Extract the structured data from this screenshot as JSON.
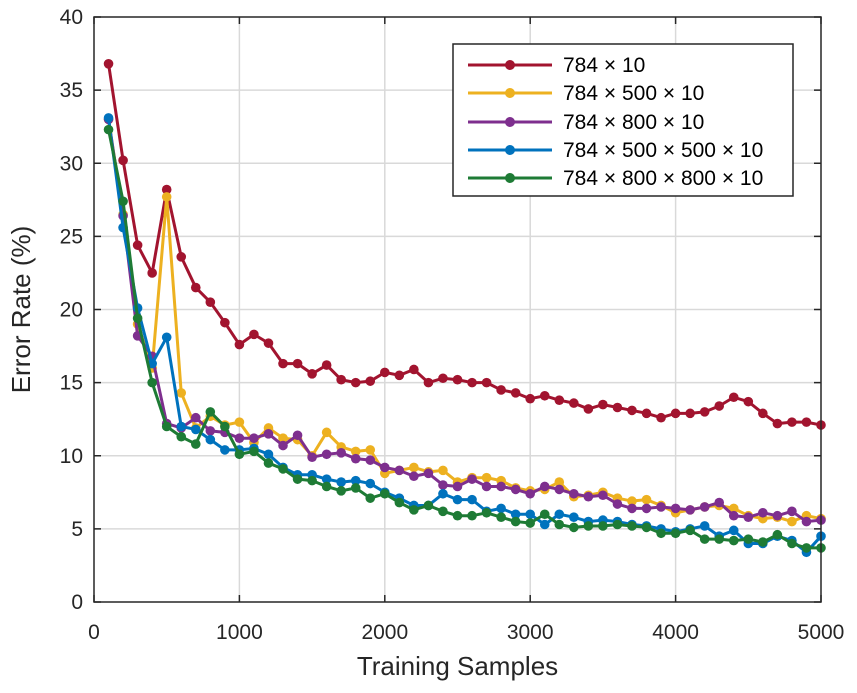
{
  "chart_data": {
    "type": "line",
    "title": "",
    "xlabel": "Training Samples",
    "ylabel": "Error Rate (%)",
    "xlim": [
      0,
      5000
    ],
    "ylim": [
      0,
      40
    ],
    "xticks": [
      0,
      1000,
      2000,
      3000,
      4000,
      5000
    ],
    "yticks": [
      0,
      5,
      10,
      15,
      20,
      25,
      30,
      35,
      40
    ],
    "grid": true,
    "legend_position": "top-right",
    "x": [
      100,
      200,
      300,
      400,
      500,
      600,
      700,
      800,
      900,
      1000,
      1100,
      1200,
      1300,
      1400,
      1500,
      1600,
      1700,
      1800,
      1900,
      2000,
      2100,
      2200,
      2300,
      2400,
      2500,
      2600,
      2700,
      2800,
      2900,
      3000,
      3100,
      3200,
      3300,
      3400,
      3500,
      3600,
      3700,
      3800,
      3900,
      4000,
      4100,
      4200,
      4300,
      4400,
      4500,
      4600,
      4700,
      4800,
      4900,
      5000
    ],
    "series": [
      {
        "name": "784 × 10",
        "color": "#a2142f",
        "values": [
          36.8,
          30.2,
          24.4,
          22.5,
          28.2,
          23.6,
          21.5,
          20.5,
          19.1,
          17.6,
          18.3,
          17.7,
          16.3,
          16.3,
          15.6,
          16.2,
          15.2,
          15.0,
          15.1,
          15.7,
          15.5,
          15.9,
          15.0,
          15.3,
          15.2,
          15.0,
          15.0,
          14.5,
          14.3,
          13.9,
          14.1,
          13.8,
          13.6,
          13.2,
          13.5,
          13.3,
          13.1,
          12.9,
          12.6,
          12.9,
          12.9,
          13.0,
          13.4,
          14.0,
          13.7,
          12.9,
          12.2,
          12.3,
          12.3,
          12.1
        ]
      },
      {
        "name": "784 × 500 × 10",
        "color": "#edb120",
        "values": [
          33.0,
          26.5,
          19.0,
          16.0,
          27.7,
          14.3,
          11.9,
          12.7,
          12.1,
          12.3,
          10.9,
          11.9,
          11.2,
          11.1,
          10.0,
          11.6,
          10.6,
          10.3,
          10.4,
          8.8,
          9.0,
          9.2,
          8.9,
          9.0,
          8.2,
          8.5,
          8.5,
          8.3,
          7.8,
          7.6,
          7.7,
          8.2,
          7.2,
          7.3,
          7.5,
          7.1,
          6.9,
          7.0,
          6.6,
          6.1,
          6.3,
          6.5,
          6.6,
          6.4,
          5.9,
          5.7,
          5.8,
          5.5,
          5.9,
          5.7
        ]
      },
      {
        "name": "784 × 800 × 10",
        "color": "#7e2f8e",
        "values": [
          33.0,
          26.4,
          18.2,
          16.8,
          12.2,
          11.9,
          12.6,
          11.7,
          11.6,
          11.2,
          11.2,
          11.5,
          10.7,
          11.4,
          9.9,
          10.1,
          10.2,
          9.8,
          9.7,
          9.2,
          9.0,
          8.6,
          8.8,
          8.0,
          7.9,
          8.4,
          7.9,
          7.9,
          7.7,
          7.4,
          7.9,
          7.7,
          7.4,
          7.2,
          7.3,
          6.7,
          6.4,
          6.4,
          6.5,
          6.4,
          6.3,
          6.5,
          6.8,
          5.9,
          5.8,
          6.1,
          5.9,
          6.2,
          5.5,
          5.6
        ]
      },
      {
        "name": "784 × 500 × 500 × 10",
        "color": "#0072bd",
        "values": [
          33.1,
          25.6,
          20.1,
          16.3,
          18.1,
          12.0,
          11.8,
          11.1,
          10.4,
          10.4,
          10.5,
          10.1,
          9.2,
          8.7,
          8.7,
          8.4,
          8.2,
          8.3,
          8.1,
          7.5,
          7.1,
          6.6,
          6.6,
          7.4,
          7.0,
          7.0,
          6.2,
          6.4,
          6.0,
          6.0,
          5.3,
          6.0,
          5.8,
          5.5,
          5.6,
          5.5,
          5.3,
          5.2,
          5.0,
          4.8,
          5.0,
          5.2,
          4.5,
          4.9,
          4.0,
          4.0,
          4.5,
          4.2,
          3.4,
          4.5
        ]
      },
      {
        "name": "784 × 800 × 800 × 10",
        "color": "#1e7b35",
        "values": [
          32.3,
          27.4,
          19.4,
          15.0,
          12.0,
          11.3,
          10.8,
          13.0,
          12.0,
          10.1,
          10.3,
          9.5,
          9.1,
          8.4,
          8.3,
          7.9,
          7.6,
          7.8,
          7.1,
          7.4,
          6.8,
          6.3,
          6.6,
          6.2,
          5.9,
          5.9,
          6.1,
          5.8,
          5.5,
          5.4,
          6.0,
          5.3,
          5.1,
          5.2,
          5.2,
          5.3,
          5.2,
          5.1,
          4.7,
          4.7,
          4.9,
          4.3,
          4.3,
          4.2,
          4.3,
          4.1,
          4.6,
          4.0,
          3.7,
          3.7
        ]
      }
    ]
  }
}
